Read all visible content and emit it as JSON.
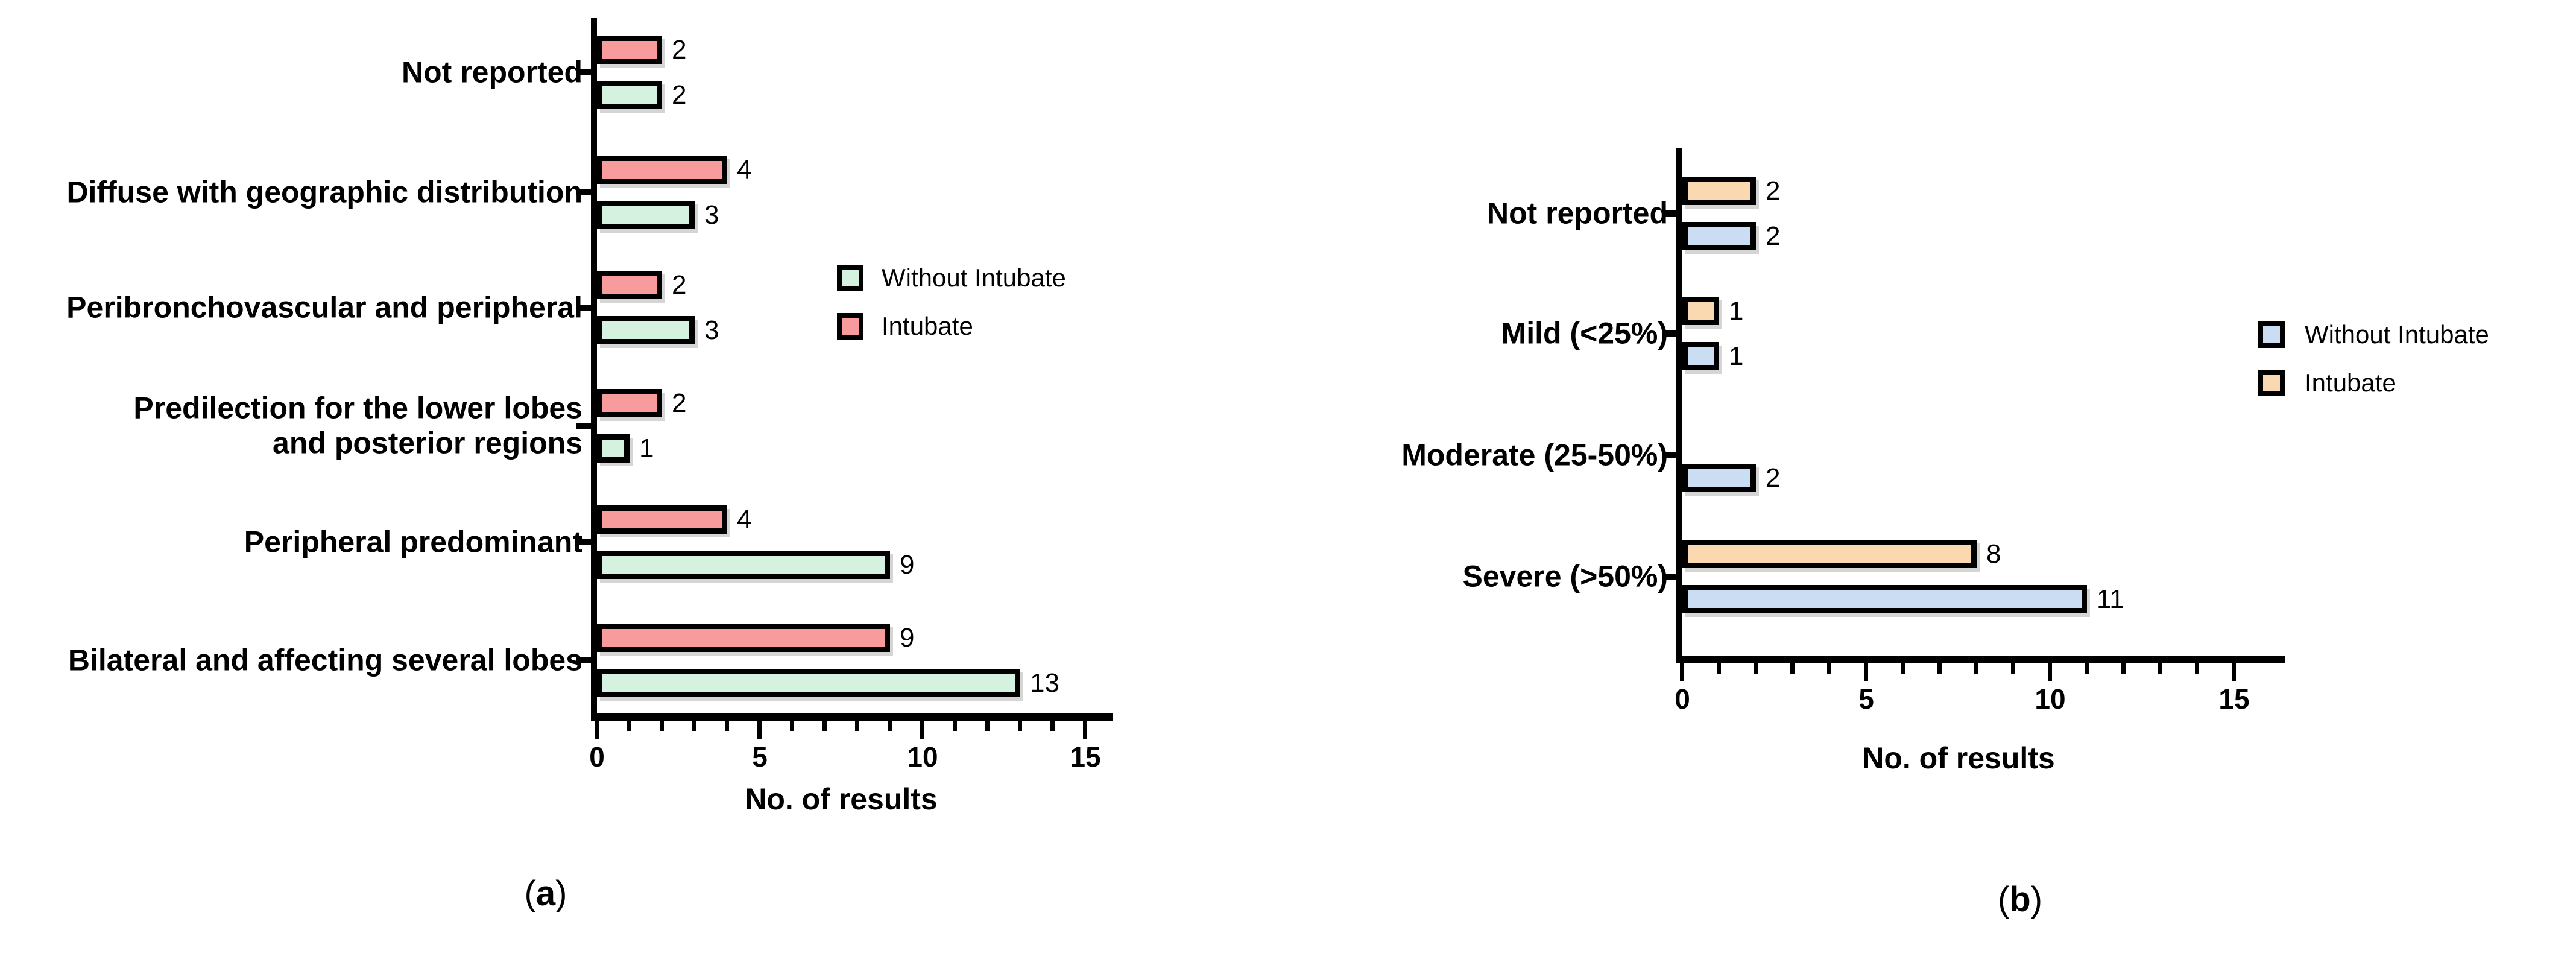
{
  "figure": {
    "paren_open": "(",
    "paren_close": ")"
  },
  "chart_data": [
    {
      "type": "bar",
      "orientation": "horizontal",
      "panel_label": "a",
      "title": "",
      "xlabel": "No. of results",
      "ylabel": "",
      "xlim": [
        0,
        15
      ],
      "xticks": [
        "0",
        "5",
        "10",
        "15"
      ],
      "minor_tick_step": 1,
      "grid": false,
      "legend_position": "right-inside",
      "categories": [
        "Not reported",
        "Diffuse with geographic distribution",
        "Peribronchovascular and peripheral",
        "Predilection for the lower lobes\nand posterior regions",
        "Peripheral predominant",
        "Bilateral and affecting several lobes"
      ],
      "series": [
        {
          "name": "Intubate",
          "color": "#f89b9d",
          "position": "above",
          "values": [
            2,
            4,
            2,
            2,
            4,
            9
          ]
        },
        {
          "name": "Without Intubate",
          "color": "#d5f2e1",
          "position": "below",
          "values": [
            2,
            3,
            3,
            1,
            9,
            13
          ]
        }
      ],
      "legend": [
        {
          "name": "Without Intubate",
          "color": "#d5f2e1"
        },
        {
          "name": "Intubate",
          "color": "#f89b9d"
        }
      ]
    },
    {
      "type": "bar",
      "orientation": "horizontal",
      "panel_label": "b",
      "title": "",
      "xlabel": "No. of results",
      "ylabel": "",
      "xlim": [
        0,
        15
      ],
      "xticks": [
        "0",
        "5",
        "10",
        "15"
      ],
      "minor_tick_step": 1,
      "grid": false,
      "legend_position": "right-inside",
      "categories": [
        "Not reported",
        "Mild (<25%)",
        "Moderate (25-50%)",
        "Severe (>50%)"
      ],
      "series": [
        {
          "name": "Intubate",
          "color": "#fad9b0",
          "position": "above",
          "values": [
            2,
            1,
            0,
            8
          ]
        },
        {
          "name": "Without Intubate",
          "color": "#cbddf3",
          "position": "below",
          "values": [
            2,
            1,
            2,
            11
          ]
        }
      ],
      "legend": [
        {
          "name": "Without Intubate",
          "color": "#cbddf3"
        },
        {
          "name": "Intubate",
          "color": "#fad9b0"
        }
      ]
    }
  ]
}
